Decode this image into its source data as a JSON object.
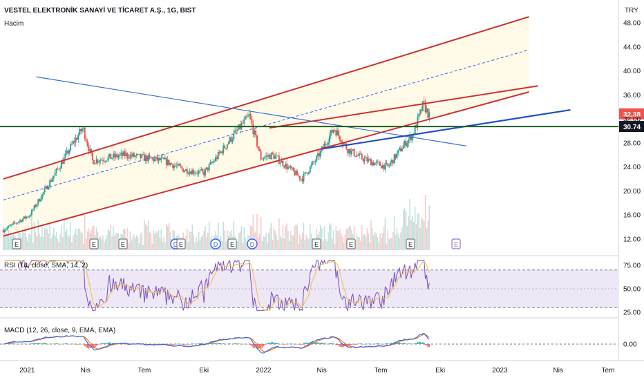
{
  "header": {
    "title": "VESTEL ELEKTRONİK SANAYİ VE TİCARET A.Ş., 1G, BIST",
    "subtitle": "Hacim",
    "currency": "TRY"
  },
  "price_axis": {
    "ticks": [
      "48.00",
      "44.00",
      "40.00",
      "36.00",
      "32.00",
      "28.00",
      "24.00",
      "20.00",
      "16.00",
      "12.00"
    ],
    "last_price_label": "32.38",
    "last_price": 32.38,
    "level_label": "30.74",
    "level": 30.74
  },
  "time_axis": {
    "labels": [
      "2021",
      "Nis",
      "Tem",
      "Eki",
      "2022",
      "Nis",
      "Tem",
      "Eki",
      "2023",
      "Nis",
      "Tem"
    ]
  },
  "events": [
    "E",
    "E",
    "E",
    "D",
    "E",
    "D",
    "E",
    "D",
    "E",
    "E",
    "E",
    "E"
  ],
  "rsi": {
    "label": "RSI (14, close, SMA, 14, 2)",
    "ticks": [
      "75.00",
      "50.00",
      "25.00"
    ],
    "upper": 70,
    "lower": 30
  },
  "macd": {
    "label": "MACD (12, 26, close, 9, EMA, EMA)",
    "ticks": [
      "0.00"
    ]
  },
  "colors": {
    "channel": "#d32f2f",
    "channel_fill": "#fffbe6",
    "trend_blue": "#1e4fc9",
    "level": "#1b5e20",
    "candle_up": "#26a69a",
    "candle_down": "#ef5350",
    "rsi_line": "#7e57c2",
    "rsi_ma": "#f6c343",
    "rsi_band": "#ede7f6",
    "macd_line": "#2962ff",
    "signal_line": "#ff6d00"
  },
  "chart_data": {
    "type": "line",
    "x_range": [
      "2020-12",
      "2023-07"
    ],
    "ylim": [
      10,
      50
    ],
    "series": [
      {
        "values": [
          {
            "x": "2020-11-25",
            "y": 13.5
          },
          {
            "x": "2021-01-05",
            "y": 16.0
          },
          {
            "x": "2021-02-05",
            "y": 21.5
          },
          {
            "x": "2021-02-25",
            "y": 25.0
          },
          {
            "x": "2021-03-10",
            "y": 27.5
          },
          {
            "x": "2021-03-28",
            "y": 30.5
          },
          {
            "x": "2021-04-12",
            "y": 25.0
          },
          {
            "x": "2021-05-05",
            "y": 25.5
          },
          {
            "x": "2021-06-01",
            "y": 26.0
          },
          {
            "x": "2021-07-01",
            "y": 25.5
          },
          {
            "x": "2021-08-01",
            "y": 25.0
          },
          {
            "x": "2021-09-01",
            "y": 23.5
          },
          {
            "x": "2021-10-01",
            "y": 23.0
          },
          {
            "x": "2021-10-20",
            "y": 25.5
          },
          {
            "x": "2021-11-10",
            "y": 28.5
          },
          {
            "x": "2021-12-10",
            "y": 32.5
          },
          {
            "x": "2021-12-28",
            "y": 25.5
          },
          {
            "x": "2022-01-15",
            "y": 26.0
          },
          {
            "x": "2022-02-01",
            "y": 24.5
          },
          {
            "x": "2022-03-01",
            "y": 22.0
          },
          {
            "x": "2022-03-25",
            "y": 25.5
          },
          {
            "x": "2022-04-20",
            "y": 30.5
          },
          {
            "x": "2022-05-10",
            "y": 27.0
          },
          {
            "x": "2022-06-01",
            "y": 25.5
          },
          {
            "x": "2022-06-25",
            "y": 24.5
          },
          {
            "x": "2022-07-12",
            "y": 24.0
          },
          {
            "x": "2022-08-01",
            "y": 27.0
          },
          {
            "x": "2022-08-20",
            "y": 29.5
          },
          {
            "x": "2022-09-05",
            "y": 34.5
          },
          {
            "x": "2022-09-14",
            "y": 32.4
          }
        ]
      }
    ],
    "annotations": {
      "channel_upper": [
        {
          "x": "2020-11-25",
          "y": 22.0
        },
        {
          "x": "2023-02-15",
          "y": 49.0
        }
      ],
      "channel_mid": [
        {
          "x": "2020-11-25",
          "y": 18.5
        },
        {
          "x": "2023-02-15",
          "y": 43.5
        }
      ],
      "channel_lower": [
        {
          "x": "2020-11-25",
          "y": 12.5
        },
        {
          "x": "2023-02-15",
          "y": 36.5
        }
      ],
      "resistance_red": [
        {
          "x": "2022-01-10",
          "y": 30.5
        },
        {
          "x": "2023-03-01",
          "y": 37.5
        }
      ],
      "blue_down": [
        {
          "x": "2021-01-15",
          "y": 39.0
        },
        {
          "x": "2022-11-10",
          "y": 27.5
        }
      ],
      "blue_up": [
        {
          "x": "2022-04-01",
          "y": 27.0
        },
        {
          "x": "2023-04-20",
          "y": 33.5
        }
      ]
    }
  }
}
